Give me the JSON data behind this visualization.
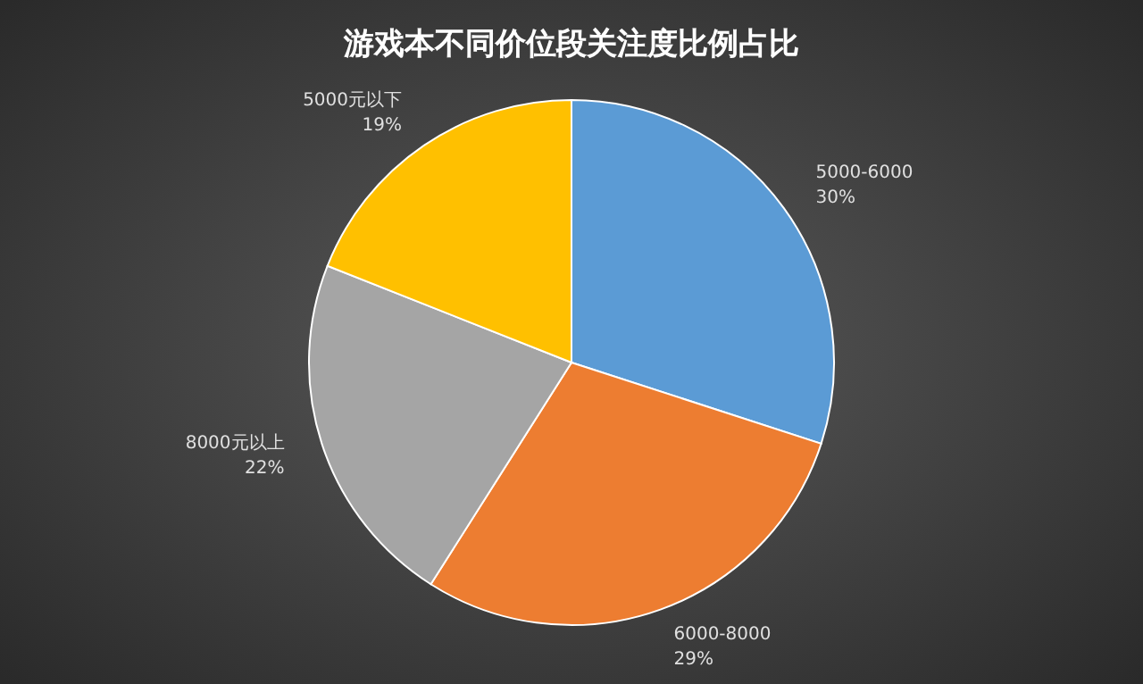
{
  "chart_data": {
    "type": "pie",
    "title": "游戏本不同价位段关注度比例占比",
    "categories": [
      "5000-6000",
      "6000-8000",
      "8000元以上",
      "5000元以下"
    ],
    "values": [
      30,
      29,
      22,
      19
    ],
    "colors": [
      "#5b9bd5",
      "#ed7d31",
      "#a5a5a5",
      "#ffc000"
    ],
    "value_labels": [
      "30%",
      "29%",
      "22%",
      "19%"
    ]
  }
}
